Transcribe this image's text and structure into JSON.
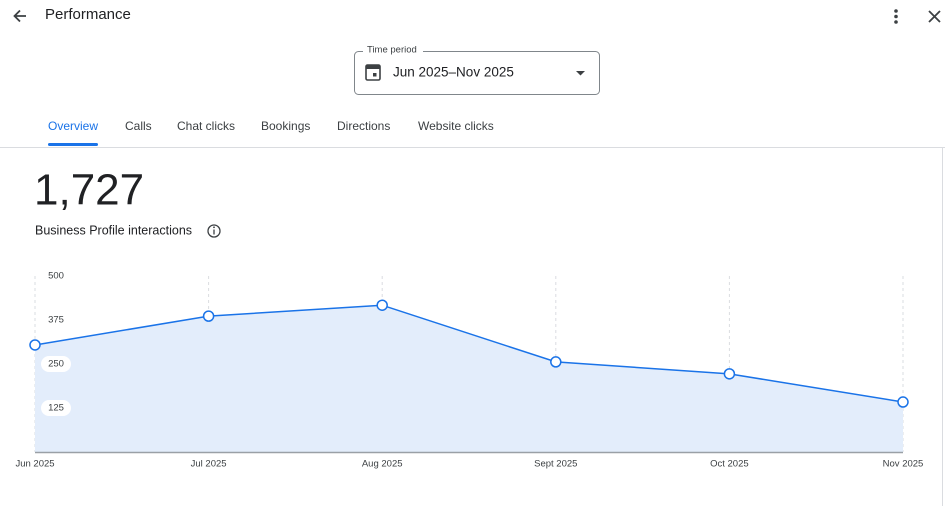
{
  "header": {
    "title": "Performance"
  },
  "time_period": {
    "label": "Time period",
    "value": "Jun 2025–Nov 2025"
  },
  "tabs": [
    "Overview",
    "Calls",
    "Chat clicks",
    "Bookings",
    "Directions",
    "Website clicks"
  ],
  "summary": {
    "total": "1,727",
    "label": "Business Profile interactions"
  },
  "chart_data": {
    "type": "line",
    "categories": [
      "Jun 2025",
      "Jul 2025",
      "Aug 2025",
      "Sept 2025",
      "Oct 2025",
      "Nov 2025"
    ],
    "series": [
      {
        "name": "Business Profile interactions",
        "color": "#1a73e8",
        "values": [
          304,
          386,
          417,
          256,
          222,
          142
        ]
      }
    ],
    "ylim": [
      0,
      500
    ],
    "yticks": [
      125,
      250,
      375,
      500
    ],
    "area": true
  }
}
